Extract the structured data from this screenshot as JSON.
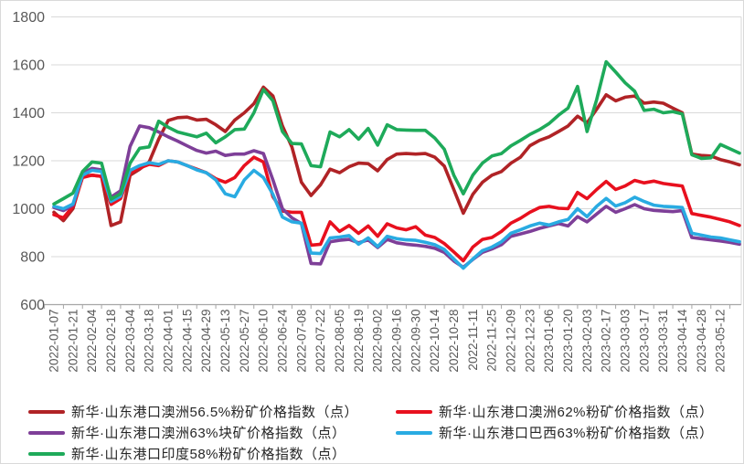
{
  "chart_data": {
    "type": "line",
    "title": "",
    "xlabel": "",
    "ylabel": "",
    "ylim": [
      600,
      1800
    ],
    "yticks": [
      600,
      800,
      1000,
      1200,
      1400,
      1600,
      1800
    ],
    "grid": true,
    "legend_position": "bottom",
    "label_every": 2,
    "x_tick_labels": [
      "2022-01-07",
      "2022-01-21",
      "2022-02-04",
      "2022-02-18",
      "2022-03-04",
      "2022-03-18",
      "2022-04-01",
      "2022-04-15",
      "2022-04-29",
      "2022-05-13",
      "2022-05-27",
      "2022-06-10",
      "2022-06-24",
      "2022-07-08",
      "2022-07-22",
      "2022-08-05",
      "2022-08-19",
      "2022-09-02",
      "2022-09-16",
      "2022-09-30",
      "2022-10-14",
      "2022-10-28",
      "2022-11-11",
      "2022-11-25",
      "2022-12-09",
      "2022-12-23",
      "2023-01-06",
      "2023-01-20",
      "2023-02-03",
      "2023-02-17",
      "2023-03-03",
      "2023-03-17",
      "2023-03-31",
      "2023-04-14",
      "2023-04-28",
      "2023-05-12"
    ],
    "axis_color": "#a6a6a6",
    "gridline_color": "#d9d9d9",
    "tick_label_color": "#595959",
    "series": [
      {
        "key": "au565-fines",
        "name": "新华·山东港口澳洲56.5%粉矿价格指数（点）",
        "color": "#B02326",
        "values": [
          985,
          950,
          1000,
          1135,
          1140,
          1135,
          930,
          945,
          1140,
          1165,
          1195,
          1290,
          1368,
          1380,
          1382,
          1370,
          1373,
          1350,
          1322,
          1370,
          1400,
          1438,
          1507,
          1470,
          1345,
          1257,
          1110,
          1055,
          1100,
          1165,
          1150,
          1175,
          1190,
          1188,
          1158,
          1205,
          1228,
          1230,
          1228,
          1230,
          1215,
          1178,
          1080,
          981,
          1060,
          1110,
          1140,
          1155,
          1190,
          1215,
          1263,
          1285,
          1300,
          1322,
          1345,
          1386,
          1358,
          1415,
          1475,
          1450,
          1465,
          1470,
          1440,
          1445,
          1440,
          1420,
          1400,
          1228,
          1222,
          1220,
          1205,
          1195,
          1183
        ]
      },
      {
        "key": "au62-fines",
        "name": "新华·山东港口澳洲62%粉矿价格指数（点）",
        "color": "#E8101E",
        "values": [
          975,
          962,
          1010,
          1130,
          1140,
          1135,
          1018,
          1042,
          1150,
          1170,
          1185,
          1180,
          1200,
          1195,
          1180,
          1165,
          1150,
          1125,
          1110,
          1130,
          1180,
          1215,
          1195,
          1050,
          990,
          985,
          985,
          848,
          852,
          945,
          905,
          930,
          897,
          928,
          885,
          937,
          920,
          912,
          925,
          890,
          880,
          855,
          820,
          783,
          840,
          872,
          880,
          905,
          940,
          960,
          985,
          1005,
          1010,
          1002,
          1000,
          1068,
          1042,
          1080,
          1114,
          1080,
          1095,
          1118,
          1108,
          1115,
          1105,
          1100,
          1095,
          980,
          972,
          965,
          955,
          945,
          930
        ]
      },
      {
        "key": "au63-lump",
        "name": "新华·山东港口澳洲63%块矿价格指数（点）",
        "color": "#7E3F98",
        "values": [
          1005,
          992,
          1015,
          1148,
          1168,
          1162,
          1048,
          1075,
          1260,
          1345,
          1338,
          1320,
          1300,
          1282,
          1262,
          1243,
          1232,
          1240,
          1222,
          1228,
          1228,
          1242,
          1230,
          1120,
          1000,
          962,
          938,
          772,
          770,
          862,
          868,
          872,
          858,
          870,
          838,
          872,
          858,
          852,
          848,
          843,
          835,
          818,
          782,
          756,
          788,
          818,
          832,
          850,
          885,
          895,
          905,
          918,
          928,
          938,
          928,
          967,
          945,
          978,
          1010,
          985,
          1000,
          1017,
          1000,
          993,
          990,
          988,
          992,
          880,
          875,
          870,
          865,
          860,
          852
        ]
      },
      {
        "key": "br63-fines",
        "name": "新华·山东港口巴西63%粉矿价格指数（点）",
        "color": "#29ABE2",
        "values": [
          1010,
          1000,
          1020,
          1140,
          1160,
          1155,
          1030,
          1052,
          1160,
          1180,
          1192,
          1185,
          1200,
          1195,
          1180,
          1162,
          1150,
          1120,
          1062,
          1050,
          1120,
          1160,
          1130,
          1060,
          965,
          945,
          940,
          815,
          813,
          878,
          882,
          888,
          852,
          878,
          842,
          885,
          875,
          870,
          868,
          860,
          850,
          830,
          790,
          752,
          790,
          825,
          840,
          862,
          898,
          912,
          928,
          940,
          932,
          945,
          955,
          1000,
          967,
          1010,
          1043,
          1011,
          1025,
          1048,
          1030,
          1015,
          1010,
          1008,
          1005,
          898,
          890,
          882,
          878,
          870,
          862
        ]
      },
      {
        "key": "in58-fines",
        "name": "新华·山东港口印度58%粉矿价格指数（点）",
        "color": "#1EAA5A",
        "values": [
          1020,
          1042,
          1065,
          1155,
          1195,
          1190,
          1040,
          1062,
          1190,
          1252,
          1258,
          1365,
          1340,
          1320,
          1310,
          1300,
          1315,
          1275,
          1300,
          1330,
          1332,
          1400,
          1497,
          1450,
          1322,
          1272,
          1270,
          1180,
          1175,
          1320,
          1300,
          1330,
          1290,
          1335,
          1265,
          1350,
          1330,
          1328,
          1327,
          1327,
          1295,
          1248,
          1140,
          1062,
          1140,
          1190,
          1220,
          1230,
          1262,
          1285,
          1310,
          1330,
          1355,
          1390,
          1420,
          1510,
          1322,
          1455,
          1613,
          1570,
          1525,
          1490,
          1410,
          1415,
          1400,
          1405,
          1395,
          1225,
          1210,
          1212,
          1268,
          1250,
          1232
        ]
      }
    ]
  }
}
